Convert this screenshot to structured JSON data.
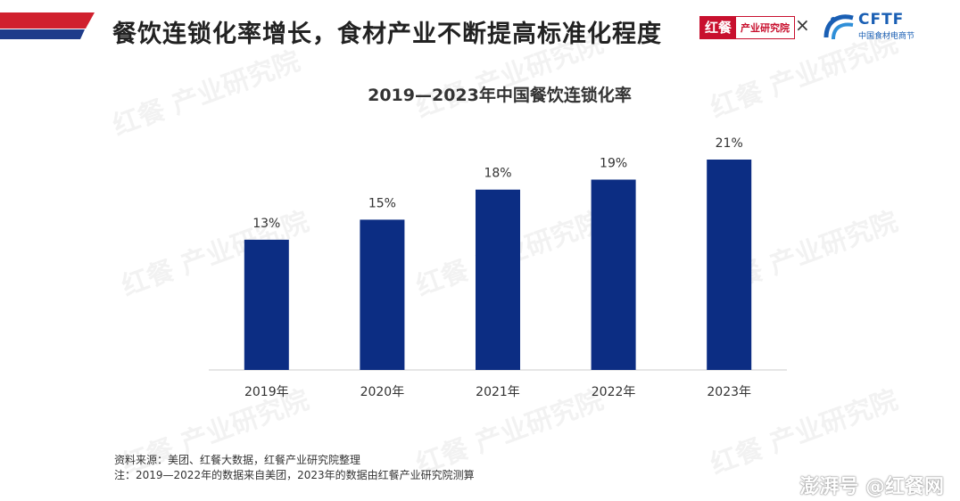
{
  "header": {
    "title": "餐饮连锁化率增长，食材产业不断提高标准化程度",
    "stripe_colors": [
      "#d0202e",
      "#1f3c8a"
    ]
  },
  "logos": {
    "hongcan_red": "红餐",
    "hongcan_text": "产业研究院",
    "separator": "×",
    "cftf_text": "CFTF",
    "cftf_sub": "中国食材电商节"
  },
  "chart_data": {
    "type": "bar",
    "title": "2019—2023年中国餐饮连锁化率",
    "categories": [
      "2019年",
      "2020年",
      "2021年",
      "2022年",
      "2023年"
    ],
    "values": [
      13,
      15,
      18,
      19,
      21
    ],
    "value_labels": [
      "13%",
      "15%",
      "18%",
      "19%",
      "21%"
    ],
    "ylim": [
      0,
      21
    ],
    "bar_color": "#0c2d83",
    "grid": false
  },
  "source": {
    "line1": "资料来源：美团、红餐大数据，红餐产业研究院整理",
    "line2": "注：2019—2022年的数据来自美团，2023年的数据由红餐产业研究院测算"
  },
  "footer_mark": "澎湃号 @红餐网",
  "watermark": "红餐 产业研究院"
}
